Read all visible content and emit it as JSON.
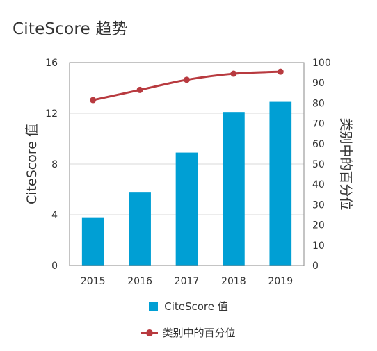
{
  "title": "CiteScore 趋势",
  "colors": {
    "bar": "#009fd4",
    "line": "#b83a3f",
    "grid": "#d9d9d9",
    "axis": "#8a8a8a"
  },
  "legend": {
    "bar_label": "CiteScore 值",
    "line_label": "类别中的百分位"
  },
  "chart_data": {
    "type": "bar",
    "title": "CiteScore 趋势",
    "categories": [
      "2015",
      "2016",
      "2017",
      "2018",
      "2019"
    ],
    "series": [
      {
        "name": "CiteScore 值",
        "type": "bar",
        "axis": "left",
        "values": [
          3.8,
          5.8,
          8.9,
          12.1,
          12.9
        ]
      },
      {
        "name": "类别中的百分位",
        "type": "line",
        "axis": "right",
        "values": [
          81.5,
          86.5,
          91.5,
          94.5,
          95.5
        ]
      }
    ],
    "ylabel": "CiteScore 值",
    "ylabel_right": "类别中的百分位",
    "ylim": [
      0,
      16
    ],
    "yticks": [
      0,
      4,
      8,
      12,
      16
    ],
    "ylim_right": [
      0,
      100
    ],
    "yticks_right": [
      0,
      10,
      20,
      30,
      40,
      50,
      60,
      70,
      80,
      90,
      100
    ],
    "grid": true,
    "legend_position": "bottom"
  }
}
